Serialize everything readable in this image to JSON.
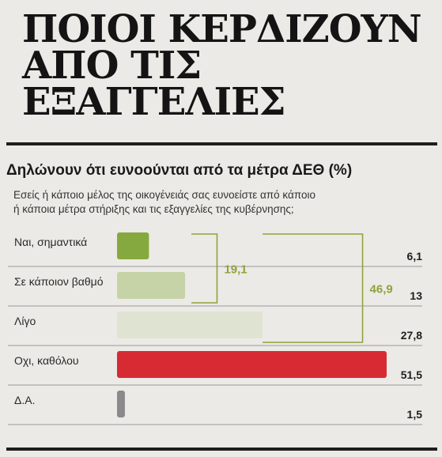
{
  "headline": "ΠΟΙΟΙ ΚΕΡΔΙΖΟΥΝ\nΑΠΟ ΤΙΣ\nΕΞΑΓΓΕΛΙΕΣ",
  "subtitle": "Δηλώνουν ότι ευνοούνται από τα μέτρα ΔΕΘ (%)",
  "question": "Εσείς ή κάποιο μέλος της οικογένειάς σας ευνοείστε από κάποιο\nή κάποια μέτρα στήριξης και τις εξαγγελίες της κυβέρνησης;",
  "chart_data": {
    "type": "bar",
    "orientation": "horizontal",
    "categories": [
      "Ναι, σημαντικά",
      "Σε κάποιον βαθμό",
      "Λίγο",
      "Οχι, καθόλου",
      "Δ.Α."
    ],
    "values": [
      6.1,
      13,
      27.8,
      51.5,
      1.5
    ],
    "value_labels": [
      "6,1",
      "13",
      "27,8",
      "51,5",
      "1,5"
    ],
    "colors": [
      "#86a93f",
      "#c5d3a6",
      "#dfe4d2",
      "#d62b33",
      "#8a8a8a"
    ],
    "brackets": [
      {
        "label": "19,1",
        "spans": [
          0,
          1
        ],
        "value": 19.1
      },
      {
        "label": "46,9",
        "spans": [
          0,
          2
        ],
        "value": 46.9
      }
    ],
    "bracket_color": "#8ea33a",
    "xlim": [
      0,
      51.5
    ]
  }
}
